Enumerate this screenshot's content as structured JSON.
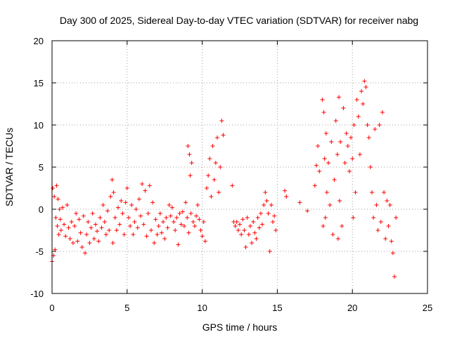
{
  "chart_data": {
    "type": "scatter",
    "title": "Day 300 of 2025, Sidereal Day-to-day VTEC variation (SDTVAR) for receiver nabg",
    "xlabel": "GPS time / hours",
    "ylabel": "SDTVAR / TECUs",
    "xlim": [
      0,
      25
    ],
    "ylim": [
      -10,
      20
    ],
    "xticks": [
      0,
      5,
      10,
      15,
      20,
      25
    ],
    "yticks": [
      -10,
      -5,
      0,
      5,
      10,
      15,
      20
    ],
    "xtick_labels": [
      "0",
      "5",
      "10",
      "15",
      "20",
      "25"
    ],
    "ytick_labels": [
      "-10",
      "-5",
      "0",
      "5",
      "10",
      "15",
      "20"
    ],
    "grid": true,
    "marker": "+",
    "series": [
      {
        "name": "SDTVAR",
        "color": "#ff0000",
        "points": [
          [
            0.0,
            -6.2
          ],
          [
            0.05,
            2.5
          ],
          [
            0.1,
            -5.5
          ],
          [
            0.15,
            1.5
          ],
          [
            0.2,
            -4.8
          ],
          [
            0.25,
            -1.0
          ],
          [
            0.3,
            2.8
          ],
          [
            0.35,
            -2.0
          ],
          [
            0.4,
            1.2
          ],
          [
            0.45,
            -3.0
          ],
          [
            0.5,
            0.0
          ],
          [
            0.55,
            -1.2
          ],
          [
            0.6,
            -2.5
          ],
          [
            0.7,
            0.2
          ],
          [
            0.8,
            -1.8
          ],
          [
            0.9,
            -3.2
          ],
          [
            1.0,
            0.5
          ],
          [
            1.1,
            -2.2
          ],
          [
            1.2,
            -3.5
          ],
          [
            1.3,
            -1.5
          ],
          [
            1.4,
            -4.0
          ],
          [
            1.5,
            -2.0
          ],
          [
            1.6,
            -0.5
          ],
          [
            1.7,
            -3.8
          ],
          [
            1.8,
            -1.2
          ],
          [
            1.9,
            -2.8
          ],
          [
            2.0,
            -4.5
          ],
          [
            2.1,
            -0.8
          ],
          [
            2.2,
            -5.2
          ],
          [
            2.3,
            -3.0
          ],
          [
            2.4,
            -1.5
          ],
          [
            2.5,
            -4.0
          ],
          [
            2.6,
            -2.2
          ],
          [
            2.7,
            -0.5
          ],
          [
            2.8,
            -3.5
          ],
          [
            2.9,
            -1.8
          ],
          [
            3.0,
            -2.6
          ],
          [
            3.1,
            -3.8
          ],
          [
            3.2,
            -1.0
          ],
          [
            3.3,
            -2.2
          ],
          [
            3.4,
            0.5
          ],
          [
            3.5,
            -1.5
          ],
          [
            3.6,
            -3.0
          ],
          [
            3.7,
            -0.2
          ],
          [
            3.8,
            -2.5
          ],
          [
            3.9,
            1.5
          ],
          [
            4.0,
            3.5
          ],
          [
            4.05,
            -4.0
          ],
          [
            4.1,
            2.0
          ],
          [
            4.2,
            -1.0
          ],
          [
            4.3,
            -2.5
          ],
          [
            4.4,
            0.2
          ],
          [
            4.5,
            -1.8
          ],
          [
            4.6,
            1.0
          ],
          [
            4.7,
            -0.5
          ],
          [
            4.8,
            -3.0
          ],
          [
            4.9,
            0.8
          ],
          [
            5.0,
            2.5
          ],
          [
            5.1,
            -1.0
          ],
          [
            5.2,
            -2.0
          ],
          [
            5.3,
            0.5
          ],
          [
            5.4,
            -3.0
          ],
          [
            5.5,
            -1.5
          ],
          [
            5.6,
            0.0
          ],
          [
            5.7,
            -2.2
          ],
          [
            5.8,
            1.2
          ],
          [
            5.9,
            -0.8
          ],
          [
            6.0,
            3.0
          ],
          [
            6.1,
            -1.8
          ],
          [
            6.2,
            2.2
          ],
          [
            6.3,
            -3.2
          ],
          [
            6.4,
            -0.5
          ],
          [
            6.5,
            2.8
          ],
          [
            6.6,
            -2.5
          ],
          [
            6.7,
            0.8
          ],
          [
            6.8,
            -4.0
          ],
          [
            6.9,
            -1.2
          ],
          [
            7.0,
            -3.0
          ],
          [
            7.1,
            -2.0
          ],
          [
            7.2,
            -0.5
          ],
          [
            7.3,
            -2.8
          ],
          [
            7.4,
            -1.5
          ],
          [
            7.5,
            -3.5
          ],
          [
            7.6,
            -1.0
          ],
          [
            7.7,
            -2.2
          ],
          [
            7.8,
            0.5
          ],
          [
            7.9,
            -0.8
          ],
          [
            8.0,
            0.2
          ],
          [
            8.1,
            -1.5
          ],
          [
            8.2,
            -2.5
          ],
          [
            8.3,
            -1.0
          ],
          [
            8.4,
            -4.2
          ],
          [
            8.5,
            -0.5
          ],
          [
            8.6,
            -1.8
          ],
          [
            8.7,
            -0.3
          ],
          [
            8.8,
            -2.0
          ],
          [
            8.9,
            0.8
          ],
          [
            9.0,
            -1.0
          ],
          [
            9.05,
            7.5
          ],
          [
            9.1,
            -2.8
          ],
          [
            9.15,
            6.5
          ],
          [
            9.2,
            4.0
          ],
          [
            9.25,
            -0.5
          ],
          [
            9.3,
            5.5
          ],
          [
            9.4,
            -1.5
          ],
          [
            9.5,
            -2.0
          ],
          [
            9.6,
            -0.8
          ],
          [
            9.7,
            0.5
          ],
          [
            9.8,
            -1.2
          ],
          [
            9.9,
            -2.5
          ],
          [
            10.0,
            -3.2
          ],
          [
            10.1,
            -1.5
          ],
          [
            10.2,
            -3.8
          ],
          [
            10.3,
            2.5
          ],
          [
            10.4,
            4.0
          ],
          [
            10.5,
            6.0
          ],
          [
            10.6,
            1.5
          ],
          [
            10.7,
            7.5
          ],
          [
            10.8,
            3.5
          ],
          [
            10.9,
            5.5
          ],
          [
            11.0,
            8.5
          ],
          [
            11.1,
            2.0
          ],
          [
            11.2,
            5.0
          ],
          [
            11.3,
            10.5
          ],
          [
            11.4,
            8.8
          ],
          [
            12.0,
            2.8
          ],
          [
            12.1,
            -1.5
          ],
          [
            12.2,
            -2.0
          ],
          [
            12.3,
            -1.5
          ],
          [
            12.4,
            -2.5
          ],
          [
            12.5,
            -1.8
          ],
          [
            12.6,
            -3.0
          ],
          [
            12.7,
            -1.2
          ],
          [
            12.8,
            -2.5
          ],
          [
            12.9,
            -4.5
          ],
          [
            13.0,
            -1.0
          ],
          [
            13.1,
            -3.0
          ],
          [
            13.2,
            -2.0
          ],
          [
            13.3,
            -4.0
          ],
          [
            13.4,
            -1.5
          ],
          [
            13.5,
            -2.8
          ],
          [
            13.6,
            -3.5
          ],
          [
            13.7,
            -1.0
          ],
          [
            13.8,
            -2.2
          ],
          [
            13.9,
            -0.5
          ],
          [
            14.0,
            -1.8
          ],
          [
            14.1,
            0.5
          ],
          [
            14.2,
            2.0
          ],
          [
            14.3,
            1.0
          ],
          [
            14.4,
            -0.5
          ],
          [
            14.5,
            -5.0
          ],
          [
            14.6,
            0.5
          ],
          [
            14.7,
            -1.5
          ],
          [
            14.8,
            -0.8
          ],
          [
            14.9,
            -2.5
          ],
          [
            15.5,
            2.2
          ],
          [
            15.6,
            1.5
          ],
          [
            16.5,
            0.8
          ],
          [
            17.0,
            -0.2
          ],
          [
            17.5,
            2.8
          ],
          [
            17.6,
            5.2
          ],
          [
            17.7,
            7.5
          ],
          [
            17.8,
            4.5
          ],
          [
            18.0,
            13.0
          ],
          [
            18.05,
            -2.0
          ],
          [
            18.1,
            11.5
          ],
          [
            18.15,
            6.0
          ],
          [
            18.2,
            -1.0
          ],
          [
            18.25,
            9.0
          ],
          [
            18.3,
            2.0
          ],
          [
            18.4,
            5.5
          ],
          [
            18.5,
            0.5
          ],
          [
            18.6,
            8.0
          ],
          [
            18.7,
            -3.0
          ],
          [
            18.8,
            3.5
          ],
          [
            18.9,
            10.5
          ],
          [
            19.0,
            6.5
          ],
          [
            19.05,
            -3.5
          ],
          [
            19.1,
            13.3
          ],
          [
            19.15,
            1.0
          ],
          [
            19.2,
            8.0
          ],
          [
            19.3,
            -2.0
          ],
          [
            19.4,
            12.0
          ],
          [
            19.5,
            5.5
          ],
          [
            19.6,
            9.0
          ],
          [
            19.7,
            7.5
          ],
          [
            19.8,
            4.5
          ],
          [
            19.9,
            8.5
          ],
          [
            20.0,
            6.0
          ],
          [
            20.05,
            -1.0
          ],
          [
            20.1,
            10.0
          ],
          [
            20.2,
            2.0
          ],
          [
            20.3,
            13.0
          ],
          [
            20.4,
            11.0
          ],
          [
            20.5,
            6.5
          ],
          [
            20.6,
            14.0
          ],
          [
            20.7,
            12.5
          ],
          [
            20.8,
            15.2
          ],
          [
            20.9,
            14.5
          ],
          [
            21.0,
            10.0
          ],
          [
            21.1,
            8.5
          ],
          [
            21.2,
            5.0
          ],
          [
            21.3,
            2.0
          ],
          [
            21.4,
            -1.0
          ],
          [
            21.5,
            9.5
          ],
          [
            21.6,
            0.5
          ],
          [
            21.7,
            -2.5
          ],
          [
            21.8,
            10.0
          ],
          [
            21.9,
            -1.5
          ],
          [
            22.0,
            11.5
          ],
          [
            22.1,
            2.0
          ],
          [
            22.2,
            -3.5
          ],
          [
            22.3,
            1.0
          ],
          [
            22.4,
            -2.0
          ],
          [
            22.5,
            0.5
          ],
          [
            22.6,
            -3.8
          ],
          [
            22.7,
            -5.2
          ],
          [
            22.8,
            -8.0
          ],
          [
            22.9,
            -1.0
          ]
        ]
      }
    ]
  }
}
